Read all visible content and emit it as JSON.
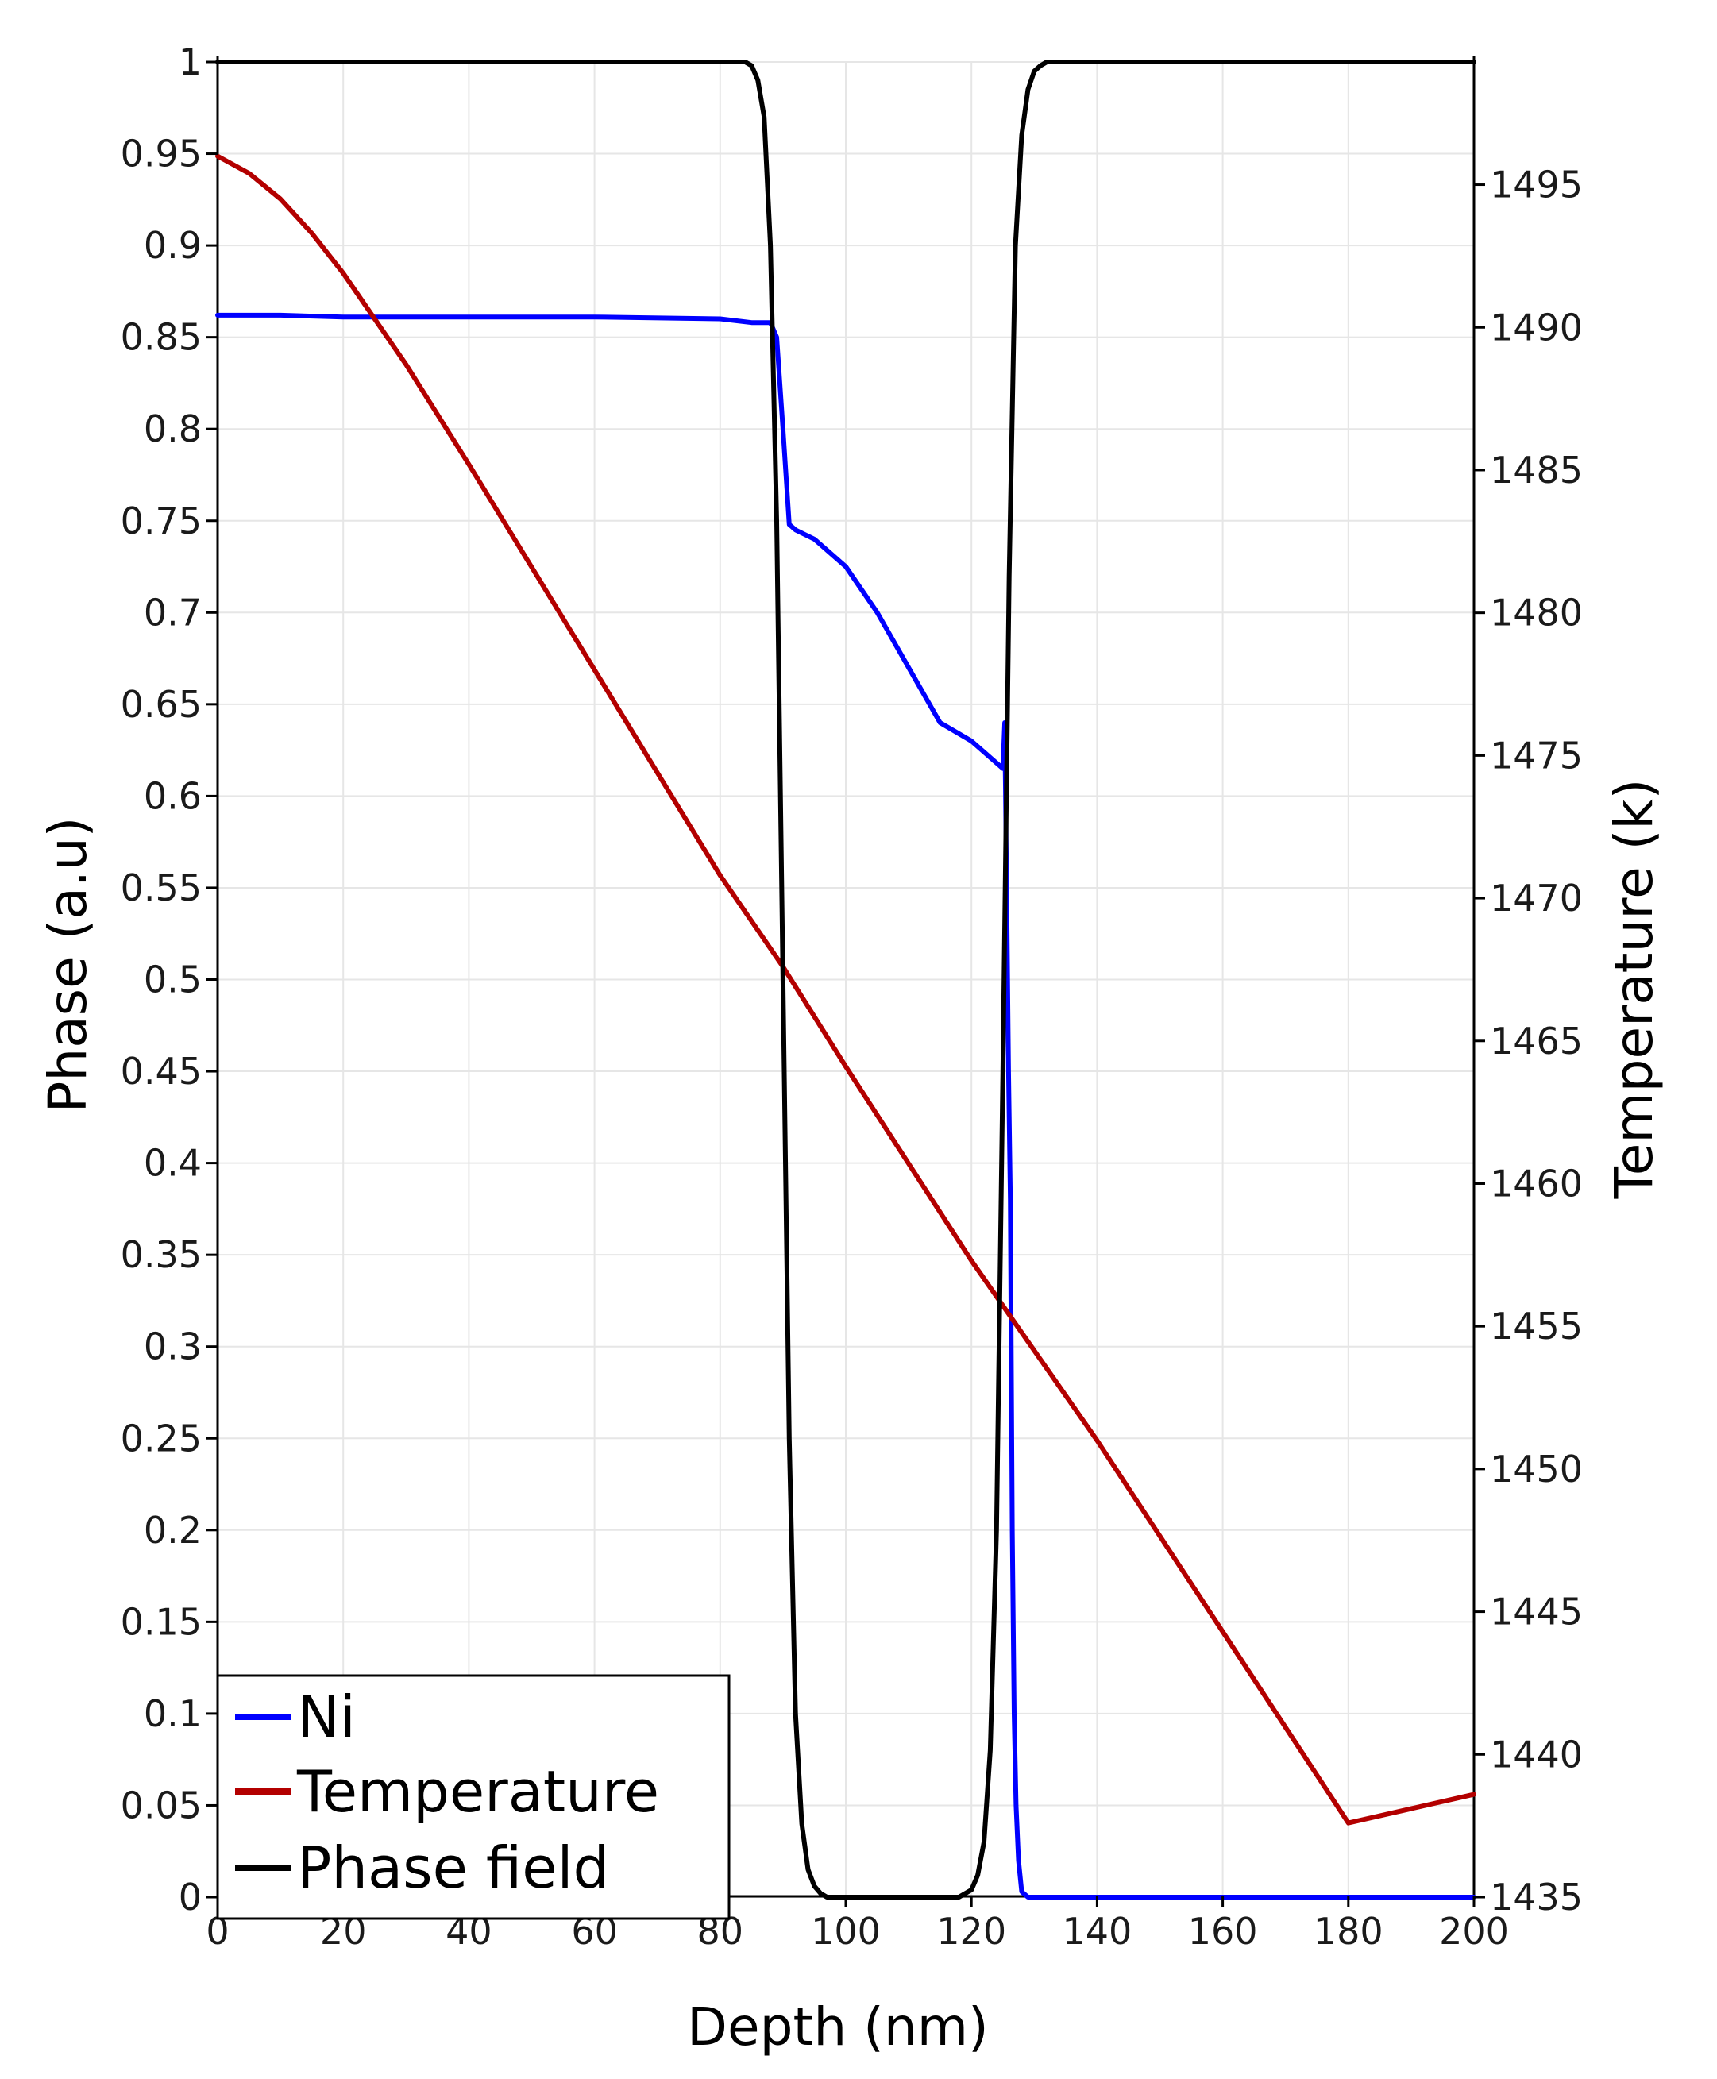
{
  "chart_data": {
    "type": "line",
    "title": "",
    "xlabel": "Depth (nm)",
    "ylabel": "Phase (a.u)",
    "y2label": "Temperature (k)",
    "xlim": [
      0,
      200
    ],
    "ylim": [
      0,
      1
    ],
    "y2lim": [
      1435,
      1499.3
    ],
    "grid": true,
    "legend_position": "bottom-left",
    "x_ticks": [
      "0",
      "20",
      "40",
      "60",
      "80",
      "100",
      "120",
      "140",
      "160",
      "180",
      "200"
    ],
    "y_ticks": [
      "0",
      "0.05",
      "0.1",
      "0.15",
      "0.2",
      "0.25",
      "0.3",
      "0.35",
      "0.4",
      "0.45",
      "0.5",
      "0.55",
      "0.6",
      "0.65",
      "0.7",
      "0.75",
      "0.8",
      "0.85",
      "0.9",
      "0.95",
      "1"
    ],
    "y2_ticks": [
      "1435",
      "1440",
      "1445",
      "1450",
      "1455",
      "1460",
      "1465",
      "1470",
      "1475",
      "1480",
      "1485",
      "1490",
      "1495"
    ],
    "series": [
      {
        "name": "Ni",
        "color": "#0000ff",
        "axis": "left",
        "x": [
          0,
          10,
          20,
          40,
          60,
          80,
          85,
          88,
          89,
          90,
          91,
          92,
          95,
          100,
          105,
          110,
          115,
          120,
          125,
          125.3,
          125.6,
          125.9,
          126.2,
          126.5,
          126.8,
          127.1,
          127.5,
          128,
          129,
          200
        ],
        "y": [
          0.862,
          0.862,
          0.861,
          0.861,
          0.861,
          0.86,
          0.858,
          0.858,
          0.85,
          0.8,
          0.748,
          0.745,
          0.74,
          0.725,
          0.7,
          0.67,
          0.64,
          0.63,
          0.615,
          0.64,
          0.55,
          0.45,
          0.38,
          0.2,
          0.1,
          0.05,
          0.02,
          0.003,
          0,
          0
        ]
      },
      {
        "name": "Temperature",
        "color": "#b30000",
        "axis": "right",
        "x": [
          0,
          5,
          10,
          15,
          20,
          30,
          40,
          50,
          60,
          70,
          80,
          90,
          100,
          120,
          140,
          160,
          180,
          200
        ],
        "y": [
          1496,
          1495.4,
          1494.5,
          1493.3,
          1491.9,
          1488.7,
          1485.2,
          1481.6,
          1478.0,
          1474.4,
          1470.8,
          1467.6,
          1464.1,
          1457.3,
          1451.0,
          1444.3,
          1437.6,
          1438.6
        ]
      },
      {
        "name": "Phase field",
        "color": "#000000",
        "axis": "left",
        "x": [
          0,
          84,
          85,
          86,
          87,
          88,
          89,
          90,
          91,
          92,
          93,
          94,
          95,
          96,
          97,
          100,
          110,
          118,
          120,
          121,
          122,
          123,
          124,
          125,
          126,
          127,
          128,
          129,
          130,
          131,
          132,
          200
        ],
        "y": [
          1,
          1,
          0.998,
          0.99,
          0.97,
          0.9,
          0.75,
          0.5,
          0.25,
          0.1,
          0.04,
          0.015,
          0.006,
          0.002,
          0,
          0,
          0,
          0,
          0.004,
          0.012,
          0.03,
          0.08,
          0.2,
          0.45,
          0.72,
          0.9,
          0.96,
          0.985,
          0.995,
          0.998,
          1,
          1
        ]
      }
    ]
  }
}
